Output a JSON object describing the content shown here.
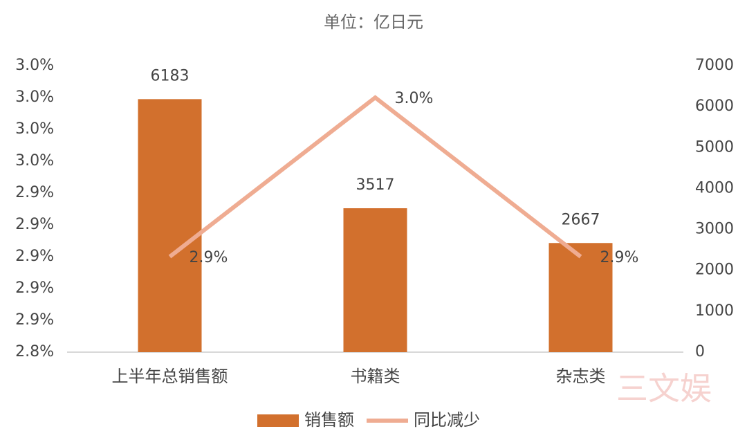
{
  "chart_data": {
    "type": "bar-line",
    "title": "单位：亿日元",
    "watermark": "三文娱",
    "categories": [
      "上半年总销售额",
      "书籍类",
      "杂志类"
    ],
    "series": [
      {
        "name": "销售额",
        "type": "bar",
        "axis": "y2",
        "color": "#d2702d",
        "values": [
          6183,
          3517,
          2667
        ]
      },
      {
        "name": "同比减少",
        "type": "line",
        "axis": "y",
        "color": "#efac92",
        "values": [
          2.9015,
          3.004,
          2.9015
        ],
        "value_labels": [
          "2.9%",
          "3.0%",
          "2.9%"
        ]
      }
    ],
    "ylim": [
      2.84,
      3.0245
    ],
    "yticks": [
      {
        "value": 2.84,
        "label": "2.8%"
      },
      {
        "value": 2.8605,
        "label": "2.9%"
      },
      {
        "value": 2.881,
        "label": "2.9%"
      },
      {
        "value": 2.9015,
        "label": "2.9%"
      },
      {
        "value": 2.922,
        "label": "2.9%"
      },
      {
        "value": 2.9425,
        "label": "2.9%"
      },
      {
        "value": 2.963,
        "label": "3.0%"
      },
      {
        "value": 2.9835,
        "label": "3.0%"
      },
      {
        "value": 3.004,
        "label": "3.0%"
      },
      {
        "value": 3.0245,
        "label": "3.0%"
      }
    ],
    "y2lim": [
      0,
      7000
    ],
    "y2ticks": [
      0,
      1000,
      2000,
      3000,
      4000,
      5000,
      6000,
      7000
    ],
    "legend": "bottom"
  }
}
